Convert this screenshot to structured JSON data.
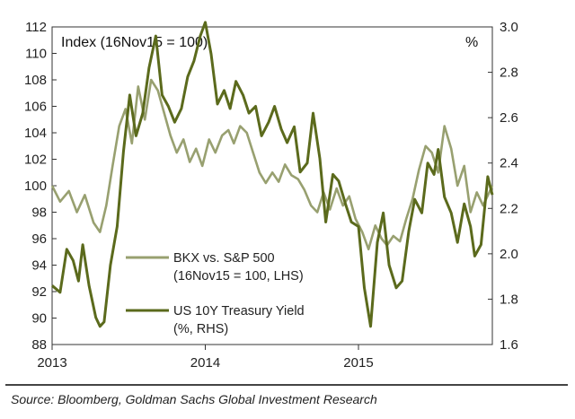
{
  "chart_data": {
    "type": "line",
    "left_axis_title": "Index (16Nov15 = 100)",
    "right_axis_title": "%",
    "left_ylim": [
      88,
      112
    ],
    "left_ticks": [
      88,
      90,
      92,
      94,
      96,
      98,
      100,
      102,
      104,
      106,
      108,
      110,
      112
    ],
    "right_ylim": [
      1.6,
      3.0
    ],
    "right_ticks": [
      "1.6",
      "1.8",
      "2.0",
      "2.2",
      "2.4",
      "2.6",
      "2.8",
      "3.0"
    ],
    "x_ticks": [
      {
        "label": "2013",
        "date": "2013-01-01"
      },
      {
        "label": "2014",
        "date": "2014-01-01"
      },
      {
        "label": "2015",
        "date": "2015-01-01"
      }
    ],
    "xlim": [
      "2013-01-01",
      "2015-11-16"
    ],
    "grid": false,
    "colors": {
      "bkx": "#98a070",
      "yield": "#5b6a1c",
      "axis": "#333333"
    },
    "series": [
      {
        "name": "BKX vs. S&P 500",
        "name_line2": "(16Nov15 = 100, LHS)",
        "axis": "left",
        "points": [
          [
            "2013-01-01",
            100.0
          ],
          [
            "2013-01-20",
            98.8
          ],
          [
            "2013-02-10",
            99.6
          ],
          [
            "2013-03-01",
            98.0
          ],
          [
            "2013-03-20",
            99.3
          ],
          [
            "2013-04-10",
            97.2
          ],
          [
            "2013-04-25",
            96.5
          ],
          [
            "2013-05-10",
            98.5
          ],
          [
            "2013-05-25",
            101.5
          ],
          [
            "2013-06-10",
            104.5
          ],
          [
            "2013-06-25",
            105.8
          ],
          [
            "2013-07-10",
            103.2
          ],
          [
            "2013-07-25",
            107.5
          ],
          [
            "2013-08-10",
            105.0
          ],
          [
            "2013-08-25",
            108.0
          ],
          [
            "2013-09-10",
            107.2
          ],
          [
            "2013-09-25",
            105.5
          ],
          [
            "2013-10-10",
            103.8
          ],
          [
            "2013-10-25",
            102.5
          ],
          [
            "2013-11-10",
            103.5
          ],
          [
            "2013-11-25",
            101.8
          ],
          [
            "2013-12-10",
            102.8
          ],
          [
            "2013-12-25",
            101.5
          ],
          [
            "2014-01-10",
            103.5
          ],
          [
            "2014-01-25",
            102.5
          ],
          [
            "2014-02-10",
            103.8
          ],
          [
            "2014-02-25",
            104.2
          ],
          [
            "2014-03-10",
            103.2
          ],
          [
            "2014-03-25",
            104.5
          ],
          [
            "2014-04-10",
            104.0
          ],
          [
            "2014-04-25",
            102.5
          ],
          [
            "2014-05-10",
            101.0
          ],
          [
            "2014-05-25",
            100.2
          ],
          [
            "2014-06-10",
            101.0
          ],
          [
            "2014-06-25",
            100.3
          ],
          [
            "2014-07-10",
            101.6
          ],
          [
            "2014-07-25",
            100.8
          ],
          [
            "2014-08-10",
            100.5
          ],
          [
            "2014-08-25",
            99.7
          ],
          [
            "2014-09-10",
            98.5
          ],
          [
            "2014-09-25",
            98.0
          ],
          [
            "2014-10-10",
            99.5
          ],
          [
            "2014-10-25",
            98.2
          ],
          [
            "2014-11-10",
            99.8
          ],
          [
            "2014-11-25",
            98.5
          ],
          [
            "2014-12-10",
            99.2
          ],
          [
            "2014-12-25",
            97.5
          ],
          [
            "2015-01-10",
            96.5
          ],
          [
            "2015-01-25",
            95.2
          ],
          [
            "2015-02-10",
            97.0
          ],
          [
            "2015-02-25",
            96.0
          ],
          [
            "2015-03-10",
            95.5
          ],
          [
            "2015-03-25",
            96.2
          ],
          [
            "2015-04-10",
            95.8
          ],
          [
            "2015-04-25",
            97.5
          ],
          [
            "2015-05-10",
            99.0
          ],
          [
            "2015-05-25",
            101.2
          ],
          [
            "2015-06-10",
            103.0
          ],
          [
            "2015-06-25",
            102.5
          ],
          [
            "2015-07-10",
            101.0
          ],
          [
            "2015-07-25",
            104.5
          ],
          [
            "2015-08-10",
            102.8
          ],
          [
            "2015-08-25",
            100.0
          ],
          [
            "2015-09-10",
            101.5
          ],
          [
            "2015-09-25",
            98.0
          ],
          [
            "2015-10-10",
            99.5
          ],
          [
            "2015-10-25",
            98.5
          ],
          [
            "2015-11-16",
            100.0
          ]
        ]
      },
      {
        "name": "US 10Y Treasury Yield",
        "name_line2": "(%, RHS)",
        "axis": "right",
        "points": [
          [
            "2013-01-01",
            1.86
          ],
          [
            "2013-01-20",
            1.83
          ],
          [
            "2013-02-05",
            2.02
          ],
          [
            "2013-02-20",
            1.97
          ],
          [
            "2013-03-05",
            1.88
          ],
          [
            "2013-03-15",
            2.04
          ],
          [
            "2013-03-30",
            1.86
          ],
          [
            "2013-04-15",
            1.72
          ],
          [
            "2013-04-25",
            1.68
          ],
          [
            "2013-05-05",
            1.7
          ],
          [
            "2013-05-20",
            1.95
          ],
          [
            "2013-06-05",
            2.12
          ],
          [
            "2013-06-20",
            2.45
          ],
          [
            "2013-07-05",
            2.7
          ],
          [
            "2013-07-20",
            2.52
          ],
          [
            "2013-08-05",
            2.62
          ],
          [
            "2013-08-20",
            2.82
          ],
          [
            "2013-09-05",
            2.96
          ],
          [
            "2013-09-20",
            2.7
          ],
          [
            "2013-10-05",
            2.65
          ],
          [
            "2013-10-20",
            2.58
          ],
          [
            "2013-11-05",
            2.64
          ],
          [
            "2013-11-20",
            2.78
          ],
          [
            "2013-12-05",
            2.85
          ],
          [
            "2013-12-20",
            2.96
          ],
          [
            "2014-01-01",
            3.02
          ],
          [
            "2014-01-15",
            2.88
          ],
          [
            "2014-01-30",
            2.66
          ],
          [
            "2014-02-15",
            2.72
          ],
          [
            "2014-03-01",
            2.64
          ],
          [
            "2014-03-15",
            2.76
          ],
          [
            "2014-04-01",
            2.7
          ],
          [
            "2014-04-15",
            2.62
          ],
          [
            "2014-05-01",
            2.65
          ],
          [
            "2014-05-15",
            2.52
          ],
          [
            "2014-06-01",
            2.58
          ],
          [
            "2014-06-15",
            2.65
          ],
          [
            "2014-07-01",
            2.55
          ],
          [
            "2014-07-15",
            2.49
          ],
          [
            "2014-08-01",
            2.56
          ],
          [
            "2014-08-15",
            2.36
          ],
          [
            "2014-09-01",
            2.4
          ],
          [
            "2014-09-15",
            2.62
          ],
          [
            "2014-10-01",
            2.42
          ],
          [
            "2014-10-15",
            2.14
          ],
          [
            "2014-11-01",
            2.35
          ],
          [
            "2014-11-15",
            2.32
          ],
          [
            "2014-12-01",
            2.22
          ],
          [
            "2014-12-15",
            2.14
          ],
          [
            "2015-01-01",
            2.12
          ],
          [
            "2015-01-15",
            1.85
          ],
          [
            "2015-01-30",
            1.68
          ],
          [
            "2015-02-15",
            2.05
          ],
          [
            "2015-03-01",
            2.18
          ],
          [
            "2015-03-15",
            1.95
          ],
          [
            "2015-04-01",
            1.85
          ],
          [
            "2015-04-15",
            1.88
          ],
          [
            "2015-05-01",
            2.1
          ],
          [
            "2015-05-15",
            2.24
          ],
          [
            "2015-06-01",
            2.18
          ],
          [
            "2015-06-15",
            2.4
          ],
          [
            "2015-06-30",
            2.35
          ],
          [
            "2015-07-10",
            2.46
          ],
          [
            "2015-07-25",
            2.25
          ],
          [
            "2015-08-10",
            2.18
          ],
          [
            "2015-08-25",
            2.05
          ],
          [
            "2015-09-10",
            2.22
          ],
          [
            "2015-09-25",
            2.12
          ],
          [
            "2015-10-05",
            1.99
          ],
          [
            "2015-10-20",
            2.04
          ],
          [
            "2015-11-05",
            2.34
          ],
          [
            "2015-11-16",
            2.26
          ]
        ]
      }
    ]
  },
  "source": "Source: Bloomberg, Goldman Sachs Global Investment Research"
}
